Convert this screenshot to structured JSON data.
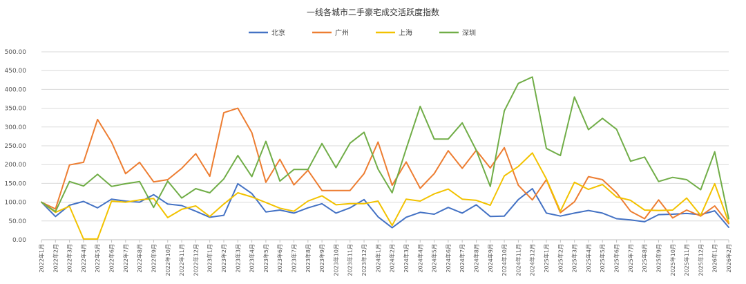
{
  "chart_data": {
    "type": "line",
    "title": "一线各城市二手豪宅成交活跃度指数",
    "xlabel": "",
    "ylabel": "",
    "ylim": [
      0,
      500
    ],
    "yticks": [
      "0.00",
      "50.00",
      "100.00",
      "150.00",
      "200.00",
      "250.00",
      "300.00",
      "350.00",
      "400.00",
      "450.00",
      "500.00"
    ],
    "ytick_values": [
      0,
      50,
      100,
      150,
      200,
      250,
      300,
      350,
      400,
      450,
      500
    ],
    "grid": true,
    "legend_position": "top-center",
    "categories": [
      "2022年1月",
      "2022年2月",
      "2022年3月",
      "2022年4月",
      "2022年5月",
      "2022年6月",
      "2022年7月",
      "2022年8月",
      "2022年9月",
      "2022年10月",
      "2022年11月",
      "2022年12月",
      "2023年1月",
      "2023年2月",
      "2023年3月",
      "2023年4月",
      "2023年5月",
      "2023年6月",
      "2023年7月",
      "2023年8月",
      "2023年9月",
      "2023年10月",
      "2023年11月",
      "2023年12月",
      "2024年1月",
      "2024年2月",
      "2024年3月",
      "2024年4月",
      "2024年5月",
      "2024年6月",
      "2024年7月",
      "2024年8月",
      "2024年9月",
      "2024年10月",
      "2024年11月",
      "2024年12月",
      "2025年1月",
      "2025年2月",
      "2025年3月",
      "2025年4月",
      "2025年5月",
      "2025年6月",
      "2025年7月",
      "2025年8月",
      "2025年9月",
      "2025年10月",
      "2025年11月",
      "2025年12月",
      "2026年1月",
      "2026年2月"
    ],
    "series": [
      {
        "name": "北京",
        "color": "#4472c4",
        "values": [
          100,
          62,
          92,
          102,
          85,
          108,
          103,
          100,
          120,
          95,
          91,
          76,
          60,
          65,
          149,
          123,
          74,
          79,
          71,
          85,
          96,
          71,
          85,
          107,
          61,
          32,
          60,
          73,
          68,
          86,
          71,
          93,
          62,
          63,
          107,
          136,
          71,
          63,
          71,
          78,
          71,
          56,
          53,
          48,
          67,
          68,
          70,
          67,
          77,
          33
        ]
      },
      {
        "name": "广州",
        "color": "#ed7d31",
        "values": [
          100,
          82,
          199,
          206,
          320,
          260,
          176,
          206,
          154,
          160,
          190,
          229,
          169,
          338,
          350,
          285,
          153,
          214,
          146,
          185,
          131,
          131,
          131,
          176,
          260,
          145,
          207,
          137,
          176,
          237,
          190,
          238,
          191,
          245,
          145,
          106,
          160,
          72,
          101,
          168,
          160,
          125,
          76,
          56,
          106,
          58,
          79,
          63,
          90,
          43
        ]
      },
      {
        "name": "上海",
        "color": "#f2c200",
        "values": [
          100,
          73,
          89,
          2,
          2,
          103,
          100,
          106,
          110,
          59,
          81,
          90,
          62,
          95,
          125,
          114,
          99,
          84,
          76,
          103,
          117,
          93,
          96,
          96,
          103,
          38,
          108,
          103,
          122,
          135,
          108,
          105,
          92,
          170,
          195,
          231,
          162,
          76,
          153,
          134,
          147,
          114,
          105,
          79,
          78,
          79,
          111,
          65,
          149,
          46
        ]
      },
      {
        "name": "深圳",
        "color": "#70ad47",
        "values": [
          100,
          75,
          155,
          143,
          174,
          142,
          149,
          155,
          86,
          156,
          111,
          136,
          125,
          162,
          224,
          168,
          262,
          156,
          187,
          187,
          256,
          192,
          257,
          286,
          188,
          125,
          242,
          355,
          268,
          268,
          311,
          238,
          142,
          343,
          416,
          433,
          243,
          224,
          380,
          293,
          323,
          294,
          209,
          220,
          155,
          166,
          160,
          133,
          234,
          56
        ]
      }
    ]
  }
}
